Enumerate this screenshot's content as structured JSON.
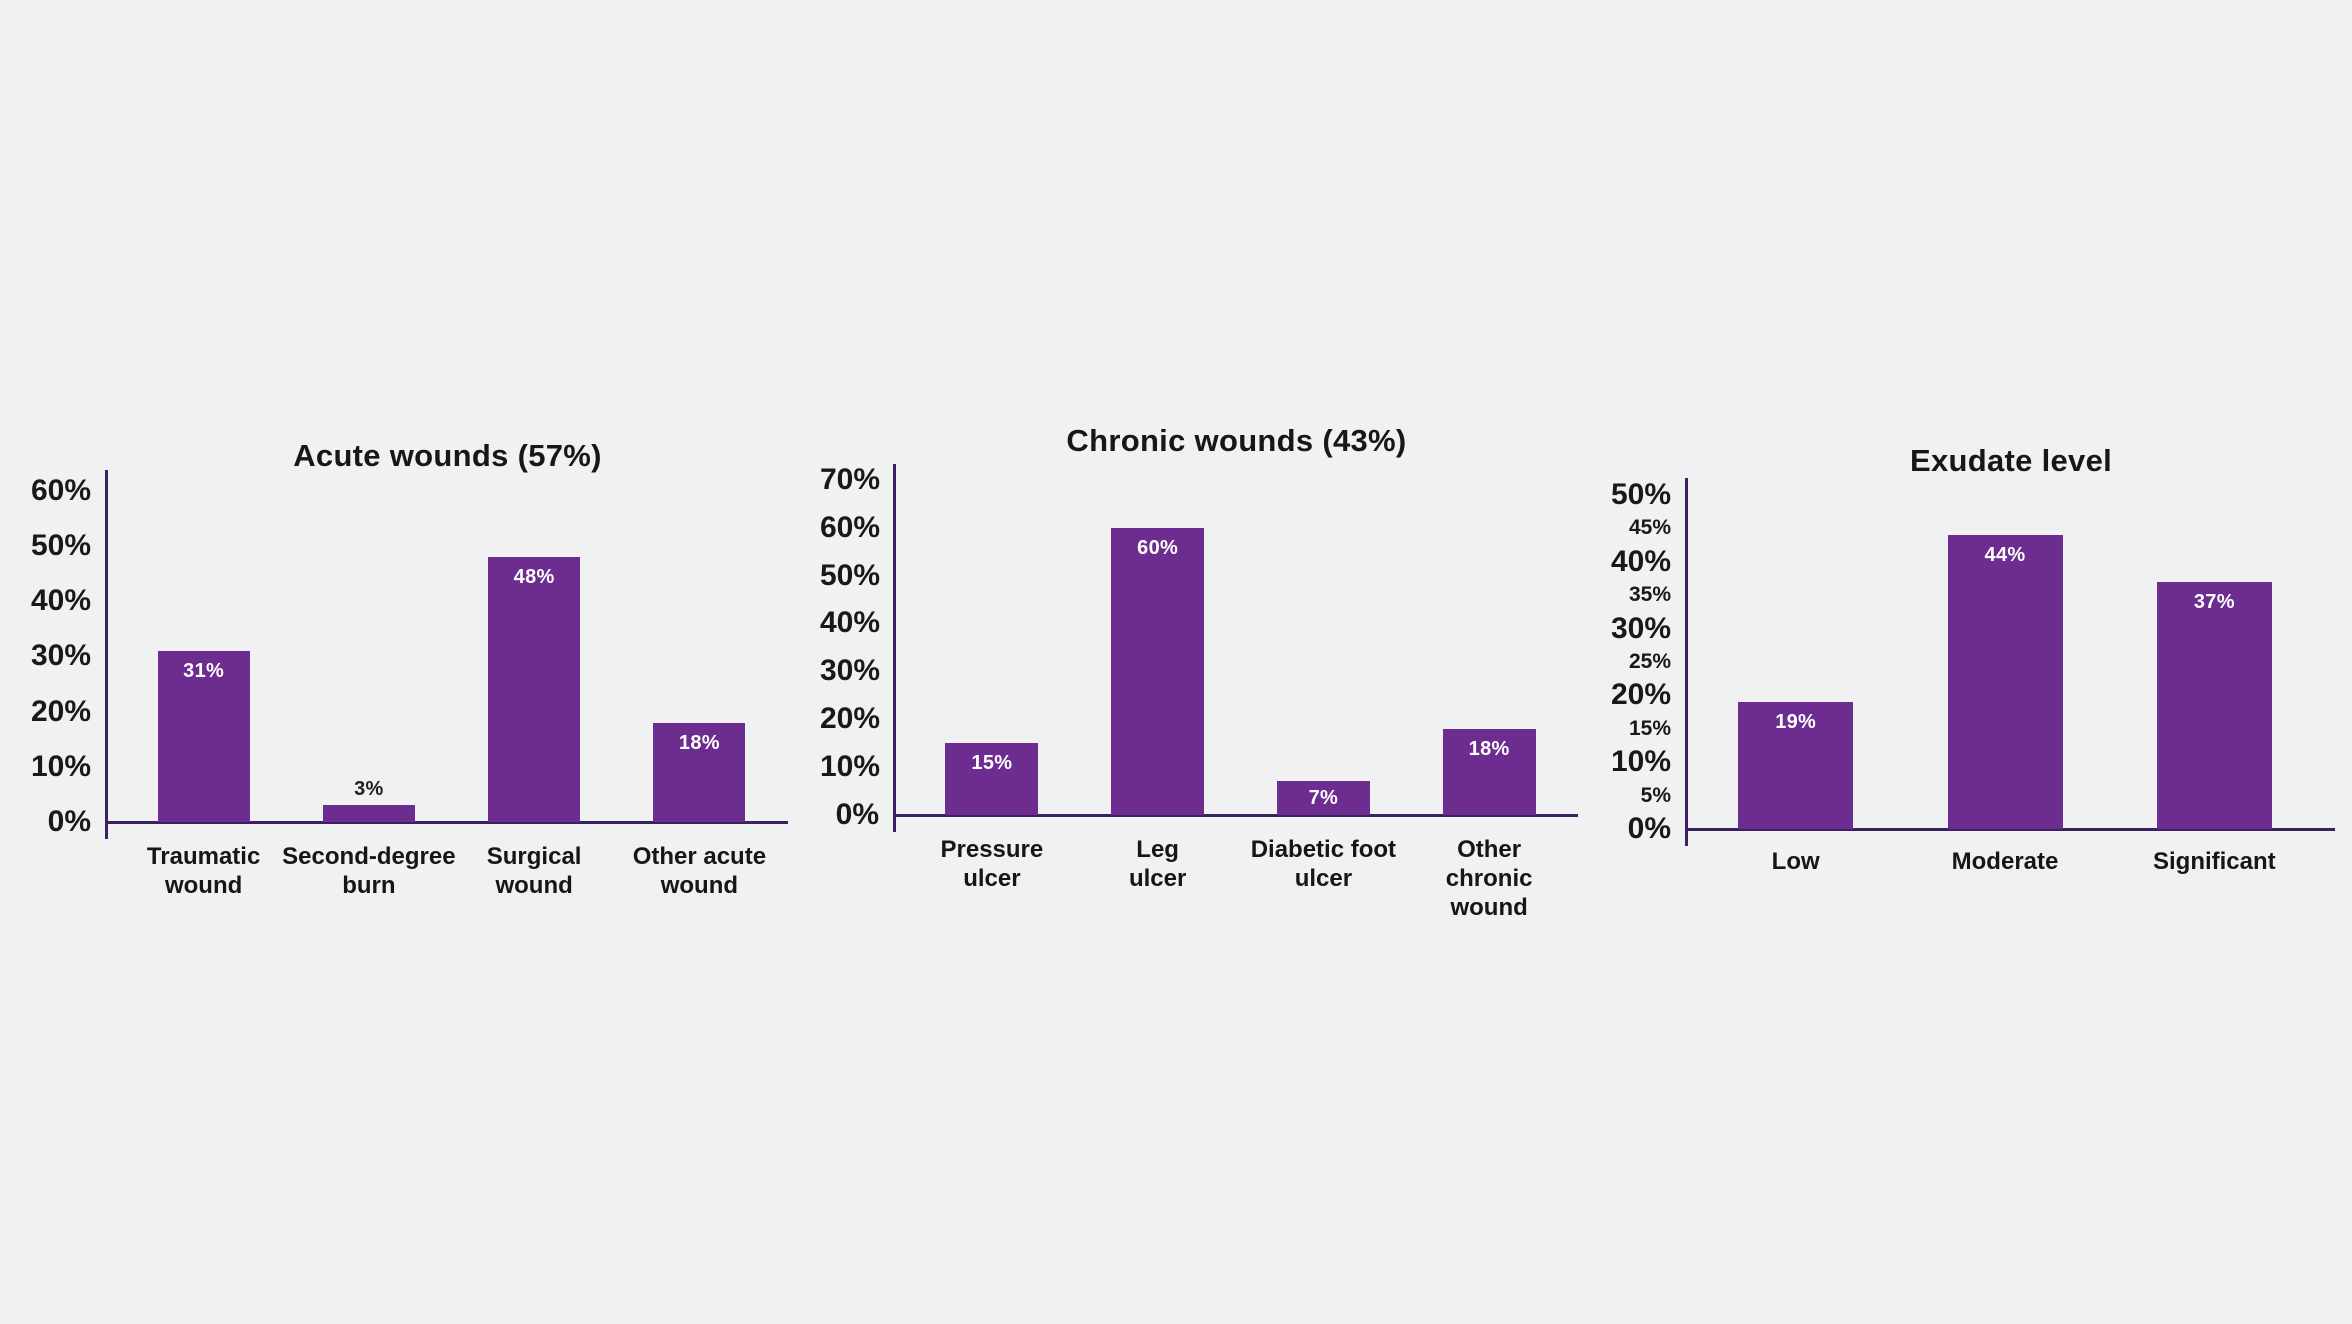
{
  "page": {
    "kind": "infographic with three bar charts"
  },
  "colors": {
    "background": "#f0f1f3",
    "bar": "#6c2c90",
    "axis": "#3d2060",
    "text": "#171717",
    "value_label_inside": "#ffffff",
    "value_label_outside": "#1f1f1f"
  },
  "chart_data": [
    {
      "type": "bar",
      "title": "Acute wounds (57%)",
      "categories": [
        "Traumatic\nwound",
        "Second-degree\nburn",
        "Surgical\nwound",
        "Other acute\nwound"
      ],
      "values": [
        31,
        3,
        48,
        18
      ],
      "value_labels": [
        "31%",
        "3%",
        "48%",
        "18%"
      ],
      "xlabel": "",
      "ylabel": "",
      "ylim": [
        0,
        60
      ],
      "tick_step": 10,
      "grid": false,
      "legend": false,
      "y_ticks": [
        {
          "label": "0%",
          "value": 0,
          "minor": false
        },
        {
          "label": "10%",
          "value": 10,
          "minor": false
        },
        {
          "label": "20%",
          "value": 20,
          "minor": false
        },
        {
          "label": "30%",
          "value": 30,
          "minor": false
        },
        {
          "label": "40%",
          "value": 40,
          "minor": false
        },
        {
          "label": "50%",
          "value": 50,
          "minor": false
        },
        {
          "label": "60%",
          "value": 60,
          "minor": false
        }
      ]
    },
    {
      "type": "bar",
      "title": "Chronic wounds (43%)",
      "categories": [
        "Pressure\nulcer",
        "Leg\nulcer",
        "Diabetic foot\nulcer",
        "Other\nchronic\nwound"
      ],
      "values": [
        15,
        60,
        7,
        18
      ],
      "value_labels": [
        "15%",
        "60%",
        "7%",
        "18%"
      ],
      "xlabel": "",
      "ylabel": "",
      "ylim": [
        0,
        70
      ],
      "tick_step": 10,
      "grid": false,
      "legend": false,
      "y_ticks": [
        {
          "label": "0%",
          "value": 0,
          "minor": false
        },
        {
          "label": "10%",
          "value": 10,
          "minor": false
        },
        {
          "label": "20%",
          "value": 20,
          "minor": false
        },
        {
          "label": "30%",
          "value": 30,
          "minor": false
        },
        {
          "label": "40%",
          "value": 40,
          "minor": false
        },
        {
          "label": "50%",
          "value": 50,
          "minor": false
        },
        {
          "label": "60%",
          "value": 60,
          "minor": false
        },
        {
          "label": "70%",
          "value": 70,
          "minor": false
        }
      ]
    },
    {
      "type": "bar",
      "title": "Exudate level",
      "categories": [
        "Low",
        "Moderate",
        "Significant"
      ],
      "values": [
        19,
        44,
        37
      ],
      "value_labels": [
        "19%",
        "44%",
        "37%"
      ],
      "xlabel": "",
      "ylabel": "",
      "ylim": [
        0,
        50
      ],
      "tick_step": 5,
      "grid": false,
      "legend": false,
      "y_ticks": [
        {
          "label": "0%",
          "value": 0,
          "minor": false
        },
        {
          "label": "5%",
          "value": 5,
          "minor": true
        },
        {
          "label": "10%",
          "value": 10,
          "minor": false
        },
        {
          "label": "15%",
          "value": 15,
          "minor": true
        },
        {
          "label": "20%",
          "value": 20,
          "minor": false
        },
        {
          "label": "25%",
          "value": 25,
          "minor": true
        },
        {
          "label": "30%",
          "value": 30,
          "minor": false
        },
        {
          "label": "35%",
          "value": 35,
          "minor": true
        },
        {
          "label": "40%",
          "value": 40,
          "minor": false
        },
        {
          "label": "45%",
          "value": 45,
          "minor": true
        },
        {
          "label": "50%",
          "value": 50,
          "minor": false
        }
      ]
    }
  ]
}
